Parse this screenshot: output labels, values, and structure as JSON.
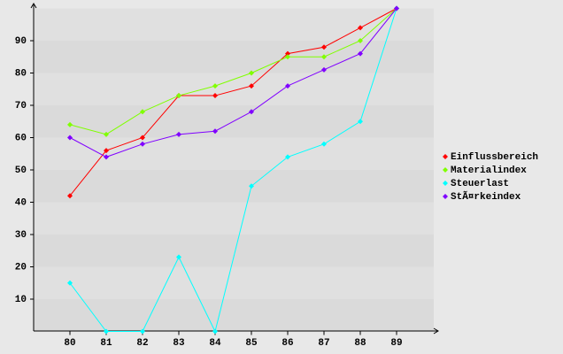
{
  "chart_data": {
    "type": "line",
    "categories": [
      "80",
      "81",
      "82",
      "83",
      "84",
      "85",
      "86",
      "87",
      "88",
      "89"
    ],
    "series": [
      {
        "name": "Einflussbereich",
        "color": "#ff0000",
        "values": [
          42,
          56,
          60,
          73,
          73,
          76,
          86,
          88,
          94,
          100
        ]
      },
      {
        "name": "Materialindex",
        "color": "#80ff00",
        "values": [
          64,
          61,
          68,
          73,
          76,
          80,
          85,
          85,
          90,
          100
        ]
      },
      {
        "name": "Steuerlast",
        "color": "#00ffff",
        "values": [
          15,
          0,
          0,
          23,
          0,
          45,
          54,
          58,
          65,
          100
        ]
      },
      {
        "name": "StÃ¤rkeindex",
        "color": "#8000ff",
        "values": [
          60,
          54,
          58,
          61,
          62,
          68,
          76,
          81,
          86,
          100
        ]
      }
    ],
    "ylim": [
      0,
      100
    ],
    "yticks": [
      10,
      20,
      30,
      40,
      50,
      60,
      70,
      80,
      90
    ],
    "grid": true,
    "legend": "right"
  }
}
